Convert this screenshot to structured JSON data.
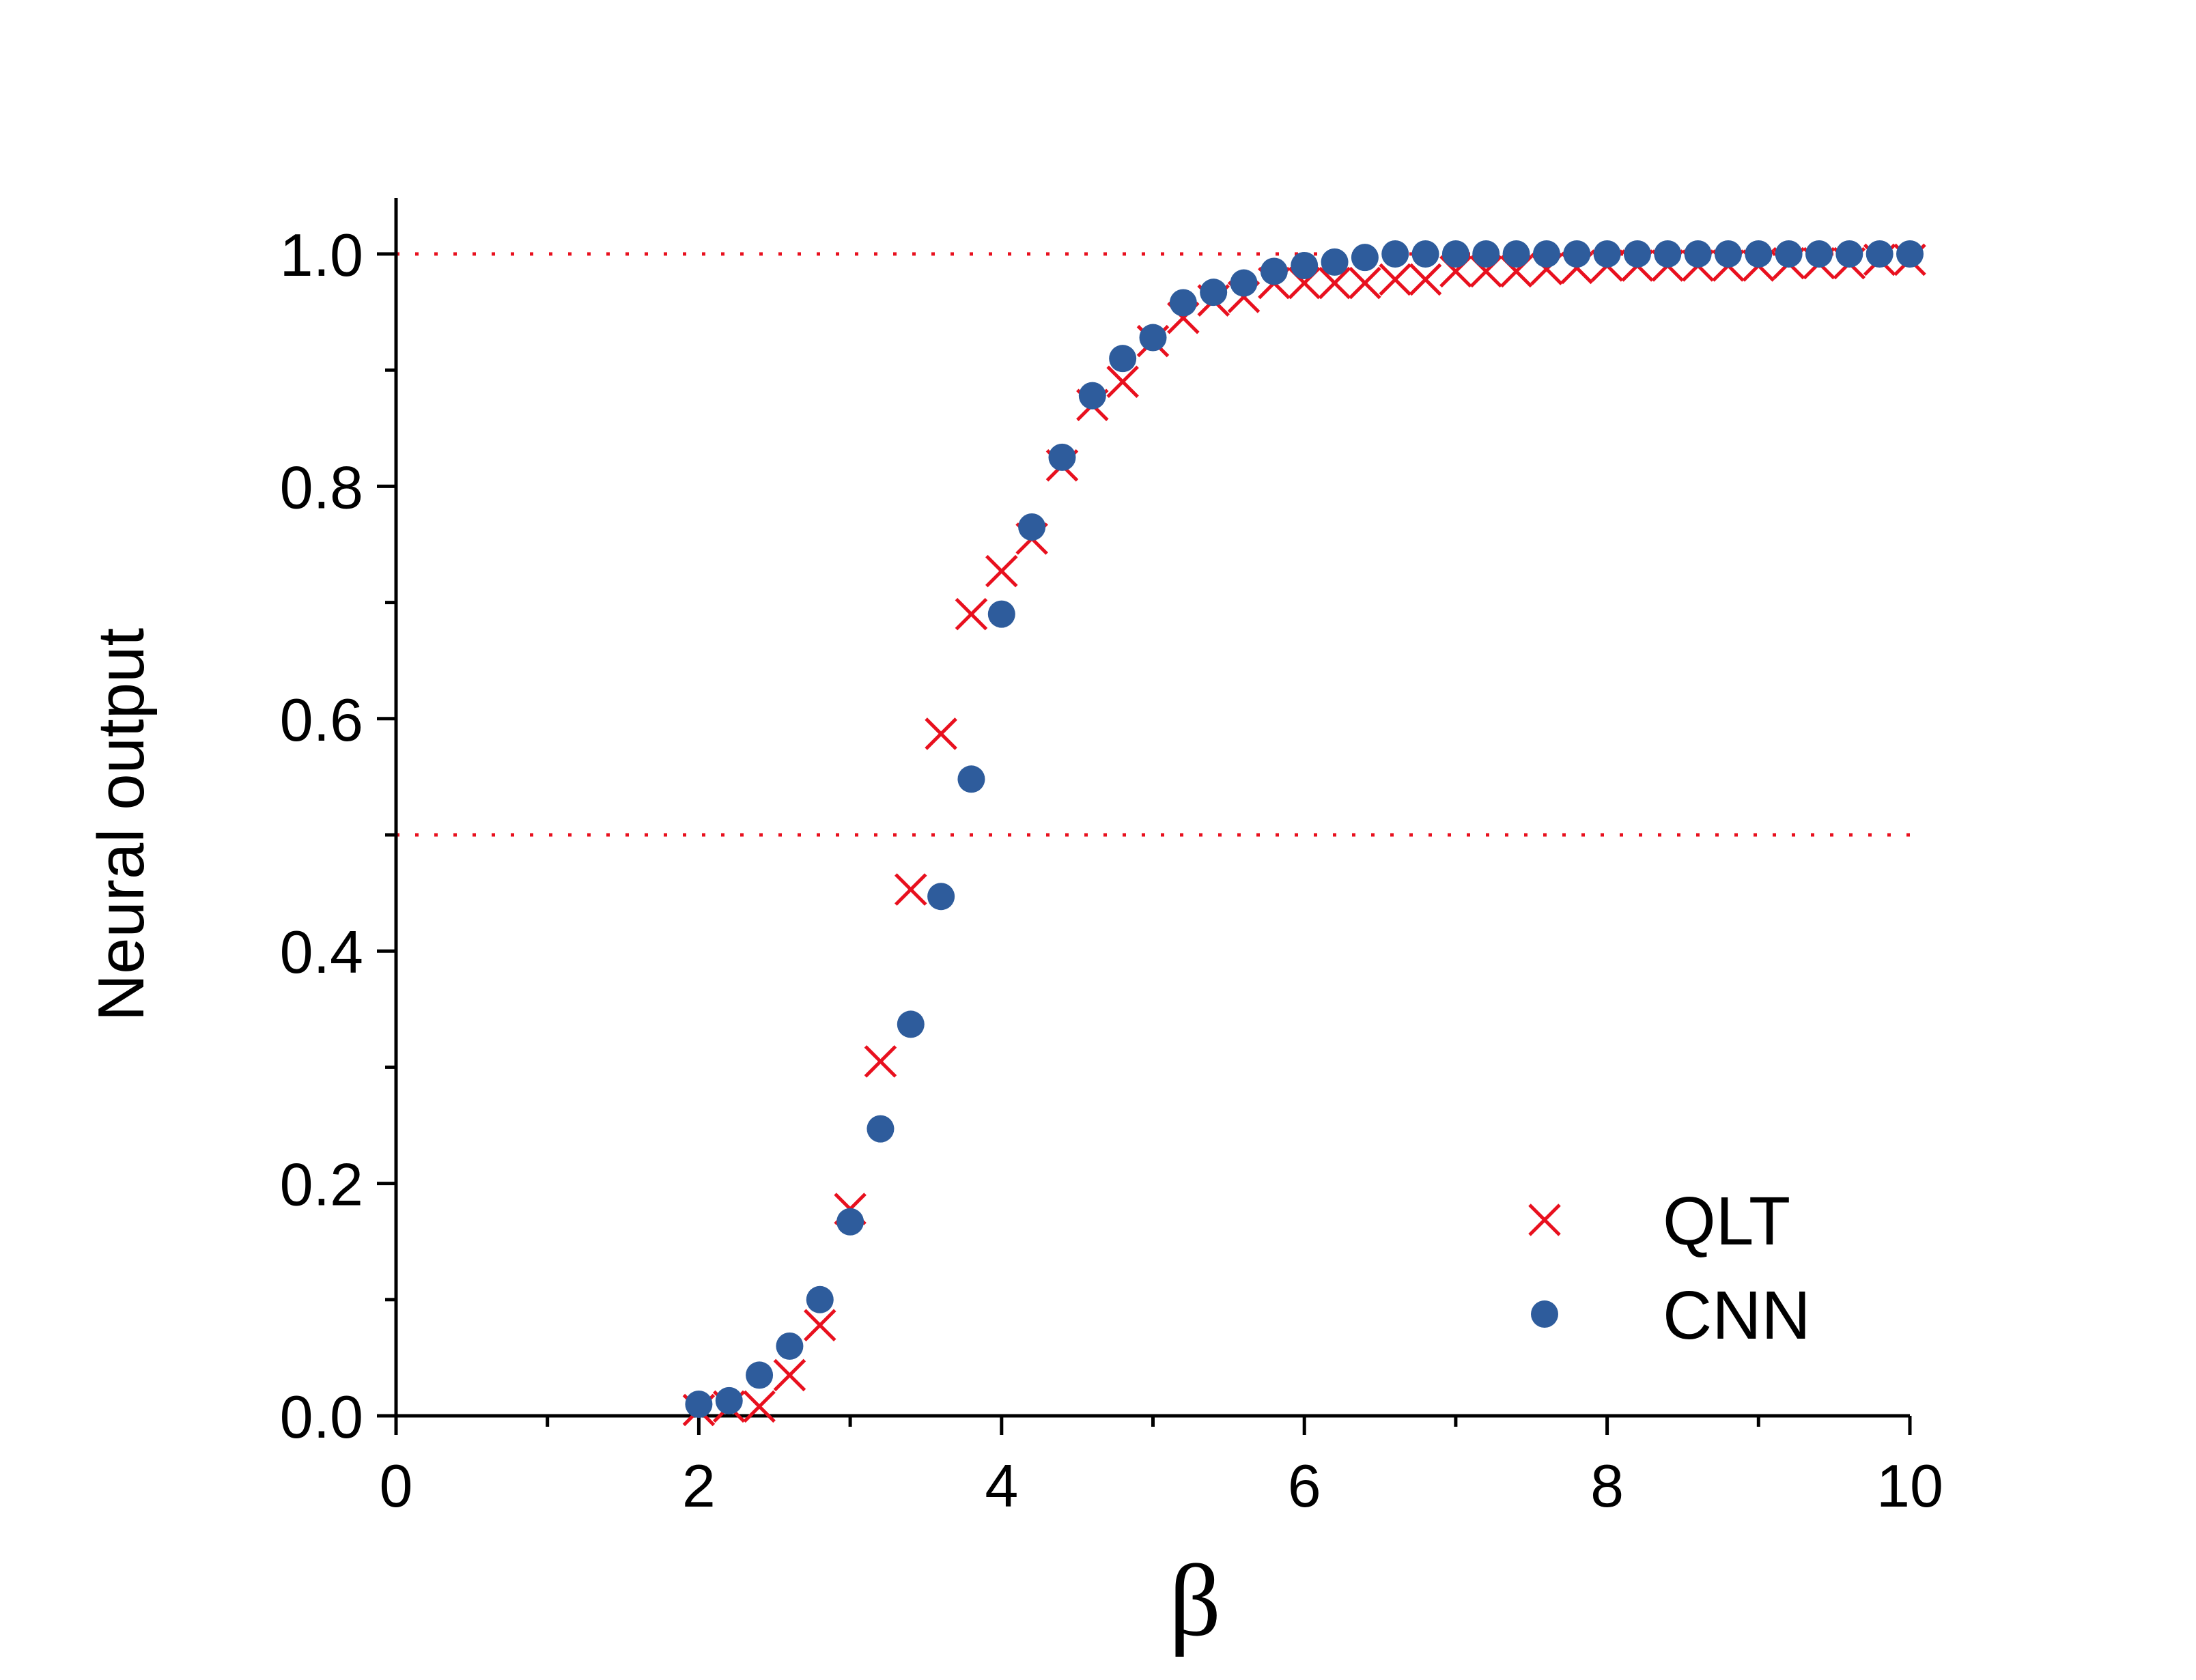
{
  "chart_data": {
    "type": "scatter",
    "xlabel": "β",
    "ylabel": "Neural output",
    "xlim": [
      0,
      10
    ],
    "ylim": [
      0,
      1.05
    ],
    "x_ticks": [
      "0",
      "2",
      "4",
      "6",
      "8",
      "10"
    ],
    "y_ticks": [
      "0.0",
      "0.2",
      "0.4",
      "0.6",
      "0.8",
      "1.0"
    ],
    "reference_lines": [
      1.0,
      0.5
    ],
    "reference_line_color": "#e8101e",
    "grid": false,
    "legend_position": "bottom-right",
    "series": [
      {
        "name": "QLT",
        "marker": "cross",
        "color": "#e8101e",
        "x": [
          2.0,
          2.2,
          2.4,
          2.6,
          2.8,
          3.0,
          3.2,
          3.4,
          3.6,
          3.8,
          4.0,
          4.2,
          4.4,
          4.6,
          4.8,
          5.0,
          5.2,
          5.4,
          5.6,
          5.8,
          6.0,
          6.2,
          6.4,
          6.6,
          6.8,
          7.0,
          7.2,
          7.4,
          7.6,
          7.8,
          8.0,
          8.2,
          8.4,
          8.6,
          8.8,
          9.0,
          9.2,
          9.4,
          9.6,
          9.8,
          10.0
        ],
        "y": [
          0.005,
          0.008,
          0.008,
          0.035,
          0.078,
          0.178,
          0.305,
          0.453,
          0.587,
          0.69,
          0.727,
          0.755,
          0.818,
          0.87,
          0.89,
          0.925,
          0.945,
          0.96,
          0.963,
          0.975,
          0.975,
          0.975,
          0.975,
          0.978,
          0.978,
          0.985,
          0.985,
          0.985,
          0.987,
          0.988,
          0.99,
          0.99,
          0.99,
          0.99,
          0.99,
          0.99,
          0.992,
          0.992,
          0.992,
          0.995,
          0.995
        ]
      },
      {
        "name": "CNN",
        "marker": "circle",
        "color": "#2e5c9c",
        "x": [
          2.0,
          2.2,
          2.4,
          2.6,
          2.8,
          3.0,
          3.2,
          3.4,
          3.6,
          3.8,
          4.0,
          4.2,
          4.4,
          4.6,
          4.8,
          5.0,
          5.2,
          5.4,
          5.6,
          5.8,
          6.0,
          6.2,
          6.4,
          6.6,
          6.8,
          7.0,
          7.2,
          7.4,
          7.6,
          7.8,
          8.0,
          8.2,
          8.4,
          8.6,
          8.8,
          9.0,
          9.2,
          9.4,
          9.6,
          9.8,
          10.0
        ],
        "y": [
          0.01,
          0.013,
          0.035,
          0.06,
          0.1,
          0.167,
          0.247,
          0.337,
          0.447,
          0.548,
          0.69,
          0.765,
          0.825,
          0.878,
          0.91,
          0.928,
          0.958,
          0.967,
          0.975,
          0.985,
          0.99,
          0.993,
          0.997,
          1.0,
          1.0,
          1.0,
          1.0,
          1.0,
          1.0,
          1.0,
          1.0,
          1.0,
          1.0,
          1.0,
          1.0,
          1.0,
          1.0,
          1.0,
          1.0,
          1.0,
          1.0
        ]
      }
    ]
  }
}
